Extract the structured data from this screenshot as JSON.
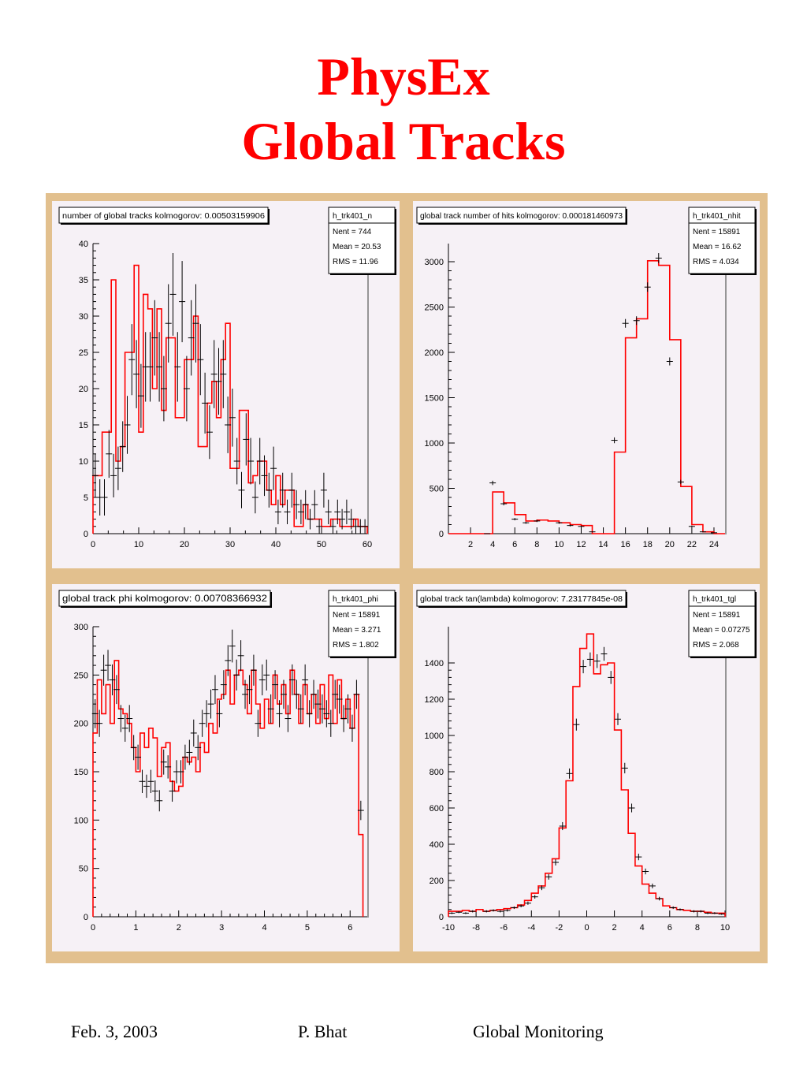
{
  "slide": {
    "title_line1": "PhysEx",
    "title_line2": "Global Tracks",
    "footer_date": "Feb. 3, 2003",
    "footer_author": "P. Bhat",
    "footer_topic": "Global  Monitoring"
  },
  "colors": {
    "title": "#ff0000",
    "frame": "#e2c08e",
    "panel_bg": "#f6f1f6",
    "reference_hist": "#ff0000",
    "data_points": "#000000"
  },
  "chart_data": [
    {
      "type": "histogram",
      "title": "number of global tracks kolmogorov: 0.00503159906",
      "stats": {
        "name": "h_trk401_n",
        "nent": "Nent = 744",
        "mean": "Mean  =  20.53",
        "rms": "RMS   =  11.96"
      },
      "xlim": [
        0,
        60
      ],
      "ylim": [
        0,
        40
      ],
      "xticks": [
        0,
        10,
        20,
        30,
        40,
        50,
        60
      ],
      "yticks": [
        0,
        5,
        10,
        15,
        20,
        25,
        30,
        35,
        40
      ],
      "bin_edges": [
        0,
        1,
        2,
        3,
        4,
        5,
        6,
        7,
        8,
        9,
        10,
        11,
        12,
        13,
        14,
        15,
        16,
        17,
        18,
        19,
        20,
        21,
        22,
        23,
        24,
        25,
        26,
        27,
        28,
        29,
        30,
        31,
        32,
        33,
        34,
        35,
        36,
        37,
        38,
        39,
        40,
        41,
        42,
        43,
        44,
        45,
        46,
        47,
        48,
        49,
        50,
        51,
        52,
        53,
        54,
        55,
        56,
        57,
        58,
        59,
        60
      ],
      "reference_values": [
        8,
        8,
        14,
        14,
        35,
        10,
        12,
        25,
        25,
        37,
        14,
        33,
        31,
        20,
        31,
        17,
        27,
        27,
        16,
        16,
        24,
        24,
        30,
        12,
        12,
        18,
        21,
        16,
        24,
        29,
        9,
        9,
        17,
        17,
        7,
        8,
        10,
        10,
        6,
        4,
        8,
        4,
        6,
        6,
        1,
        1,
        4,
        2,
        2,
        2,
        1,
        1,
        2,
        2,
        1,
        1,
        1,
        2,
        1,
        1
      ],
      "data_points": [
        [
          0.5,
          8,
          3
        ],
        [
          1.5,
          5,
          2.5
        ],
        [
          2.5,
          5,
          2.5
        ],
        [
          3.5,
          11,
          3.3
        ],
        [
          4.5,
          8,
          3
        ],
        [
          5.5,
          9,
          3
        ],
        [
          6.5,
          12,
          3.5
        ],
        [
          7.5,
          15,
          4
        ],
        [
          8.5,
          24,
          4.9
        ],
        [
          9.5,
          22,
          4.7
        ],
        [
          10.5,
          19,
          4.4
        ],
        [
          11.5,
          23,
          4.8
        ],
        [
          12.5,
          23,
          4.8
        ],
        [
          13.5,
          27,
          5.2
        ],
        [
          14.5,
          23,
          4.8
        ],
        [
          15.5,
          20,
          4.5
        ],
        [
          16.5,
          29,
          5.4
        ],
        [
          17.5,
          33,
          5.7
        ],
        [
          18.5,
          23,
          4.8
        ],
        [
          19.5,
          32,
          5.6
        ],
        [
          20.5,
          20,
          4.5
        ],
        [
          21.5,
          27,
          5.2
        ],
        [
          22.5,
          29,
          5.4
        ],
        [
          23.5,
          24,
          4.9
        ],
        [
          24.5,
          18,
          4.2
        ],
        [
          25.5,
          14,
          3.7
        ],
        [
          26.5,
          22,
          4.7
        ],
        [
          27.5,
          21,
          4.6
        ],
        [
          28.5,
          22,
          4.7
        ],
        [
          29.5,
          15,
          3.9
        ],
        [
          30.5,
          16,
          4
        ],
        [
          31.5,
          10,
          3.2
        ],
        [
          32.5,
          6,
          2.5
        ],
        [
          33.5,
          13,
          3.6
        ],
        [
          34.5,
          10,
          3.2
        ],
        [
          35.5,
          5,
          2.2
        ],
        [
          36.5,
          10,
          3.2
        ],
        [
          37.5,
          8,
          2.8
        ],
        [
          38.5,
          6,
          2.4
        ],
        [
          39.5,
          9,
          3
        ],
        [
          40.5,
          3,
          1.7
        ],
        [
          41.5,
          6,
          2.4
        ],
        [
          42.5,
          3,
          1.7
        ],
        [
          43.5,
          6,
          2.4
        ],
        [
          44.5,
          4,
          2
        ],
        [
          45.5,
          3,
          1.7
        ],
        [
          46.5,
          4,
          2
        ],
        [
          47.5,
          2,
          1.4
        ],
        [
          48.5,
          4,
          2
        ],
        [
          49.5,
          1,
          1
        ],
        [
          50.5,
          6,
          2.4
        ],
        [
          51.5,
          3,
          1.7
        ],
        [
          52.5,
          1,
          1
        ],
        [
          53.5,
          3,
          1.7
        ],
        [
          54.5,
          2,
          1.4
        ],
        [
          55.5,
          3,
          1.7
        ],
        [
          56.5,
          2,
          1.4
        ],
        [
          57.5,
          1,
          1
        ],
        [
          58.5,
          1,
          1
        ],
        [
          59.5,
          1,
          1
        ]
      ]
    },
    {
      "type": "histogram",
      "title": "global track number of hits kolmogorov: 0.000181460973",
      "stats": {
        "name": "h_trk401_nhit",
        "nent": "Nent = 15891",
        "mean": "Mean  =  16.62",
        "rms": "RMS   =  4.034"
      },
      "xlim": [
        0,
        25
      ],
      "ylim": [
        0,
        3200
      ],
      "xticks": [
        2,
        4,
        6,
        8,
        10,
        12,
        14,
        16,
        18,
        20,
        22,
        24
      ],
      "yticks": [
        0,
        500,
        1000,
        1500,
        2000,
        2500,
        3000
      ],
      "bin_edges": [
        0,
        1,
        2,
        3,
        4,
        5,
        6,
        7,
        8,
        9,
        10,
        11,
        12,
        13,
        14,
        15,
        16,
        17,
        18,
        19,
        20,
        21,
        22,
        23,
        24,
        25
      ],
      "reference_values": [
        0,
        0,
        0,
        0,
        460,
        340,
        210,
        140,
        150,
        140,
        120,
        100,
        90,
        0,
        0,
        900,
        2160,
        2370,
        3010,
        2960,
        2140,
        520,
        100,
        20,
        0
      ],
      "data_points": [
        [
          3.5,
          0,
          0
        ],
        [
          4,
          560,
          24
        ],
        [
          5,
          330,
          18
        ],
        [
          6,
          160,
          13
        ],
        [
          7,
          120,
          11
        ],
        [
          8,
          140,
          12
        ],
        [
          10,
          120,
          11
        ],
        [
          11,
          90,
          10
        ],
        [
          12,
          80,
          9
        ],
        [
          13,
          20,
          5
        ],
        [
          15,
          1030,
          32
        ],
        [
          16,
          2320,
          48
        ],
        [
          17,
          2350,
          48
        ],
        [
          18,
          2720,
          52
        ],
        [
          19,
          3040,
          55
        ],
        [
          20,
          1900,
          44
        ],
        [
          21,
          570,
          24
        ],
        [
          22,
          80,
          9
        ],
        [
          23,
          20,
          5
        ],
        [
          24,
          10,
          3
        ]
      ]
    },
    {
      "type": "histogram",
      "title": "global track phi kolmogorov: 0.00708366932",
      "stats": {
        "name": "h_trk401_phi",
        "nent": "Nent = 15891",
        "mean": "Mean  =  3.271",
        "rms": "RMS   =  1.802"
      },
      "xlim": [
        0,
        6.4
      ],
      "ylim": [
        0,
        300
      ],
      "xticks": [
        0,
        1,
        2,
        3,
        4,
        5,
        6
      ],
      "yticks": [
        0,
        50,
        100,
        150,
        200,
        250,
        300
      ],
      "bin_edges": [
        0,
        0.1,
        0.2,
        0.3,
        0.4,
        0.5,
        0.6,
        0.7,
        0.8,
        0.9,
        1,
        1.1,
        1.2,
        1.3,
        1.4,
        1.5,
        1.6,
        1.7,
        1.8,
        1.9,
        2,
        2.1,
        2.2,
        2.3,
        2.4,
        2.5,
        2.6,
        2.7,
        2.8,
        2.9,
        3,
        3.1,
        3.2,
        3.3,
        3.4,
        3.5,
        3.6,
        3.7,
        3.8,
        3.9,
        4,
        4.1,
        4.2,
        4.3,
        4.4,
        4.5,
        4.6,
        4.7,
        4.8,
        4.9,
        5,
        5.1,
        5.2,
        5.3,
        5.4,
        5.5,
        5.6,
        5.7,
        5.8,
        5.9,
        6,
        6.1,
        6.2,
        6.3
      ],
      "reference_values": [
        190,
        245,
        210,
        240,
        200,
        265,
        215,
        210,
        200,
        175,
        150,
        190,
        175,
        195,
        185,
        145,
        175,
        180,
        140,
        130,
        135,
        165,
        160,
        165,
        150,
        180,
        170,
        200,
        190,
        225,
        230,
        255,
        220,
        250,
        255,
        240,
        210,
        255,
        220,
        195,
        225,
        200,
        250,
        220,
        240,
        210,
        255,
        230,
        200,
        240,
        210,
        230,
        200,
        240,
        205,
        250,
        200,
        245,
        205,
        225,
        195,
        230,
        85
      ],
      "data_points": [
        [
          0.05,
          210,
          15
        ],
        [
          0.15,
          200,
          14
        ],
        [
          0.25,
          255,
          16
        ],
        [
          0.35,
          260,
          16
        ],
        [
          0.45,
          245,
          16
        ],
        [
          0.55,
          235,
          15
        ],
        [
          0.65,
          205,
          14
        ],
        [
          0.75,
          195,
          14
        ],
        [
          0.85,
          205,
          14
        ],
        [
          0.95,
          175,
          13
        ],
        [
          1.05,
          165,
          13
        ],
        [
          1.15,
          140,
          12
        ],
        [
          1.25,
          135,
          12
        ],
        [
          1.35,
          140,
          12
        ],
        [
          1.45,
          130,
          11
        ],
        [
          1.55,
          120,
          11
        ],
        [
          1.65,
          160,
          13
        ],
        [
          1.75,
          155,
          12
        ],
        [
          1.85,
          130,
          11
        ],
        [
          1.95,
          150,
          12
        ],
        [
          2.05,
          150,
          12
        ],
        [
          2.15,
          165,
          13
        ],
        [
          2.25,
          170,
          13
        ],
        [
          2.35,
          190,
          14
        ],
        [
          2.45,
          175,
          13
        ],
        [
          2.55,
          200,
          14
        ],
        [
          2.65,
          210,
          14
        ],
        [
          2.75,
          220,
          15
        ],
        [
          2.85,
          235,
          15
        ],
        [
          2.95,
          210,
          14
        ],
        [
          3.05,
          240,
          15
        ],
        [
          3.15,
          265,
          16
        ],
        [
          3.25,
          280,
          17
        ],
        [
          3.35,
          250,
          16
        ],
        [
          3.45,
          270,
          16
        ],
        [
          3.55,
          230,
          15
        ],
        [
          3.65,
          235,
          15
        ],
        [
          3.75,
          255,
          16
        ],
        [
          3.85,
          200,
          14
        ],
        [
          3.95,
          245,
          16
        ],
        [
          4.05,
          250,
          16
        ],
        [
          4.15,
          215,
          15
        ],
        [
          4.25,
          240,
          15
        ],
        [
          4.35,
          210,
          14
        ],
        [
          4.45,
          230,
          15
        ],
        [
          4.55,
          205,
          14
        ],
        [
          4.65,
          245,
          16
        ],
        [
          4.75,
          230,
          15
        ],
        [
          4.85,
          215,
          15
        ],
        [
          4.95,
          245,
          16
        ],
        [
          5.05,
          210,
          14
        ],
        [
          5.15,
          230,
          15
        ],
        [
          5.25,
          220,
          15
        ],
        [
          5.35,
          215,
          15
        ],
        [
          5.45,
          210,
          14
        ],
        [
          5.55,
          200,
          14
        ],
        [
          5.65,
          230,
          15
        ],
        [
          5.75,
          225,
          15
        ],
        [
          5.85,
          205,
          14
        ],
        [
          5.95,
          215,
          15
        ],
        [
          6.05,
          195,
          14
        ],
        [
          6.15,
          230,
          15
        ],
        [
          6.25,
          110,
          10
        ]
      ]
    },
    {
      "type": "histogram",
      "title": "global track tan(lambda) kolmogorov: 7.23177845e-08",
      "stats": {
        "name": "h_trk401_tgl",
        "nent": "Nent = 15891",
        "mean": "Mean  =  0.07275",
        "rms": "RMS   =  2.068"
      },
      "xlim": [
        -10,
        10
      ],
      "ylim": [
        0,
        1600
      ],
      "xticks": [
        -10,
        -8,
        -6,
        -4,
        -2,
        0,
        2,
        4,
        6,
        8,
        10
      ],
      "yticks": [
        0,
        200,
        400,
        600,
        800,
        1000,
        1200,
        1400
      ],
      "bin_edges": [
        -10,
        -9.5,
        -9,
        -8.5,
        -8,
        -7.5,
        -7,
        -6.5,
        -6,
        -5.5,
        -5,
        -4.5,
        -4,
        -3.5,
        -3,
        -2.5,
        -2,
        -1.5,
        -1,
        -0.5,
        0,
        0.5,
        1,
        1.5,
        2,
        2.5,
        3,
        3.5,
        4,
        4.5,
        5,
        5.5,
        6,
        6.5,
        7,
        7.5,
        8,
        8.5,
        9,
        9.5,
        10
      ],
      "reference_values": [
        30,
        30,
        35,
        30,
        40,
        30,
        35,
        40,
        45,
        50,
        65,
        90,
        130,
        170,
        240,
        320,
        490,
        750,
        1270,
        1480,
        1560,
        1340,
        1390,
        1400,
        1030,
        700,
        460,
        280,
        180,
        130,
        100,
        60,
        50,
        40,
        35,
        30,
        30,
        25,
        20,
        20
      ],
      "data_points": [
        [
          -9.75,
          20,
          5
        ],
        [
          -9.25,
          25,
          5
        ],
        [
          -8.75,
          20,
          5
        ],
        [
          -8.25,
          30,
          6
        ],
        [
          -7.25,
          30,
          6
        ],
        [
          -6.75,
          35,
          6
        ],
        [
          -6.25,
          30,
          6
        ],
        [
          -5.75,
          35,
          6
        ],
        [
          -5.25,
          50,
          7
        ],
        [
          -4.75,
          60,
          8
        ],
        [
          -4.25,
          75,
          9
        ],
        [
          -3.75,
          110,
          10
        ],
        [
          -3.25,
          160,
          13
        ],
        [
          -2.75,
          220,
          15
        ],
        [
          -2.25,
          300,
          17
        ],
        [
          -1.75,
          500,
          22
        ],
        [
          -1.25,
          790,
          28
        ],
        [
          -0.75,
          1060,
          33
        ],
        [
          -0.25,
          1380,
          37
        ],
        [
          0.25,
          1420,
          38
        ],
        [
          0.75,
          1410,
          38
        ],
        [
          1.25,
          1450,
          38
        ],
        [
          1.75,
          1320,
          36
        ],
        [
          2.25,
          1090,
          33
        ],
        [
          2.75,
          820,
          29
        ],
        [
          3.25,
          600,
          24
        ],
        [
          3.75,
          330,
          18
        ],
        [
          4.25,
          250,
          16
        ],
        [
          4.75,
          170,
          13
        ],
        [
          5.25,
          100,
          10
        ],
        [
          6.25,
          50,
          7
        ],
        [
          6.75,
          40,
          6
        ],
        [
          7.75,
          30,
          6
        ],
        [
          8.25,
          30,
          6
        ],
        [
          8.75,
          20,
          5
        ],
        [
          9.25,
          20,
          5
        ],
        [
          9.75,
          15,
          4
        ]
      ]
    }
  ]
}
